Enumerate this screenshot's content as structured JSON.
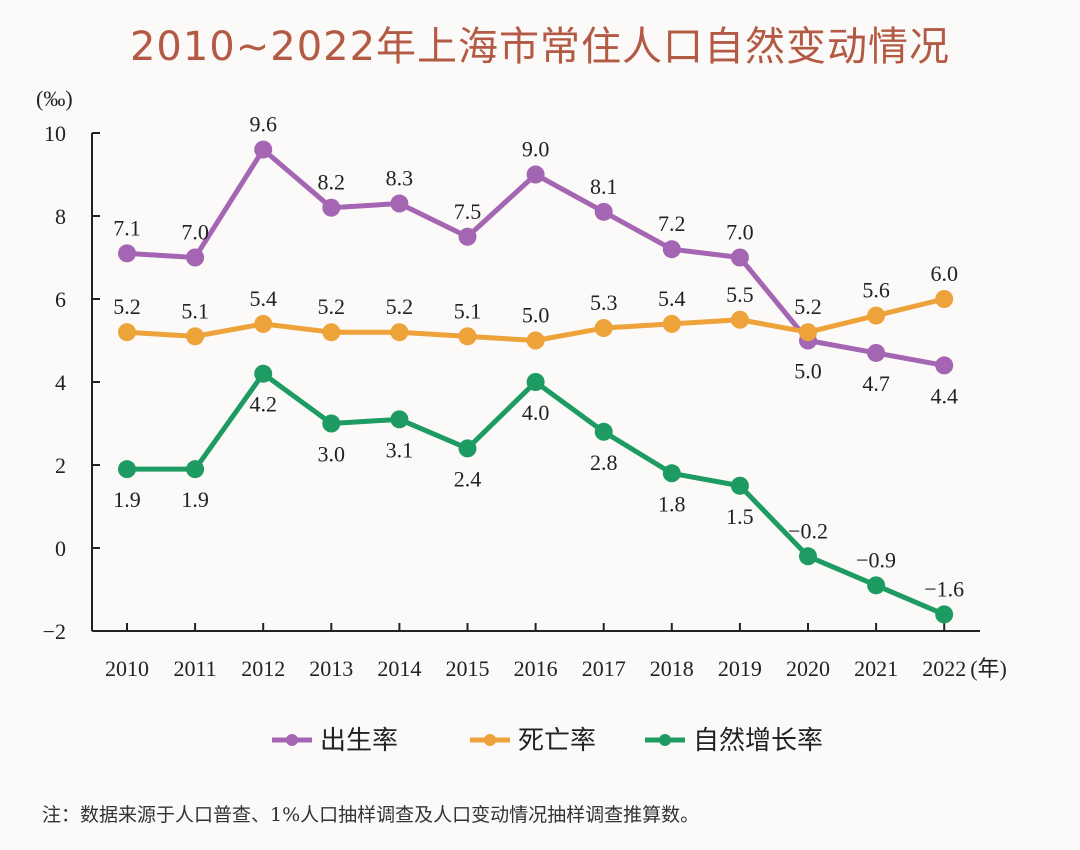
{
  "chart_data": {
    "type": "line",
    "title": "2010~2022年上海市常住人口自然变动情况",
    "ylabel": "(‰)",
    "xlabel_unit": "(年)",
    "x": [
      "2010",
      "2011",
      "2012",
      "2013",
      "2014",
      "2015",
      "2016",
      "2017",
      "2018",
      "2019",
      "2020",
      "2021",
      "2022"
    ],
    "ylim": [
      -2,
      10
    ],
    "yticks": [
      -2,
      0,
      2,
      4,
      6,
      8,
      10
    ],
    "ytick_labels": [
      "−2",
      "0",
      "2",
      "4",
      "6",
      "8",
      "10"
    ],
    "grid": false,
    "legend_position": "bottom",
    "series": [
      {
        "name": "出生率",
        "color": "#a466b2",
        "values": [
          7.1,
          7.0,
          9.6,
          8.2,
          8.3,
          7.5,
          9.0,
          8.1,
          7.2,
          7.0,
          5.0,
          4.7,
          4.4
        ]
      },
      {
        "name": "死亡率",
        "color": "#eea23a",
        "values": [
          5.2,
          5.1,
          5.4,
          5.2,
          5.2,
          5.1,
          5.0,
          5.3,
          5.4,
          5.5,
          5.2,
          5.6,
          6.0
        ]
      },
      {
        "name": "自然增长率",
        "color": "#1e9b62",
        "values": [
          1.9,
          1.9,
          4.2,
          3.0,
          3.1,
          2.4,
          4.0,
          2.8,
          1.8,
          1.5,
          -0.2,
          -0.9,
          -1.6
        ]
      }
    ],
    "note": "注：数据来源于人口普查、1%人口抽样调查及人口变动情况抽样调查推算数。"
  },
  "colors": {
    "title": "#b35a45",
    "axis": "#222222"
  }
}
